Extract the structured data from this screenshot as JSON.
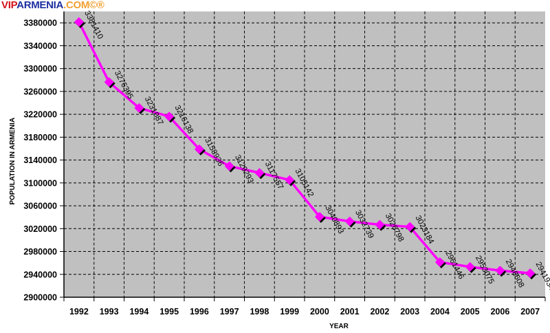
{
  "logo": {
    "part1": "VIP",
    "part2": "ARMENIA",
    "part3": ".COM©®",
    "colors": [
      "#d4121a",
      "#1c2fa0",
      "#f0a030"
    ]
  },
  "chart_data": {
    "type": "line",
    "title": "",
    "xlabel": "YEAR",
    "ylabel": "POPULATION IN ARMENIA",
    "categories": [
      "1992",
      "1993",
      "1994",
      "1995",
      "1996",
      "1997",
      "1998",
      "1999",
      "2000",
      "2001",
      "2002",
      "2003",
      "2004",
      "2005",
      "2006",
      "2007"
    ],
    "series": [
      {
        "name": "Population",
        "values": [
          3381410,
          3276395,
          3231087,
          3216138,
          3158936,
          3129293,
          3117557,
          3105142,
          3040893,
          3032739,
          3026798,
          3023184,
          2961446,
          2953075,
          2946608,
          2941934
        ],
        "color": "#ff00ff"
      }
    ],
    "ylim": [
      2900000,
      3400000
    ],
    "yticks": [
      2900000,
      2940000,
      2980000,
      3020000,
      3060000,
      3100000,
      3140000,
      3180000,
      3220000,
      3260000,
      3300000,
      3340000,
      3380000
    ],
    "grid": true,
    "plot_bg": "#c0c0c0"
  }
}
